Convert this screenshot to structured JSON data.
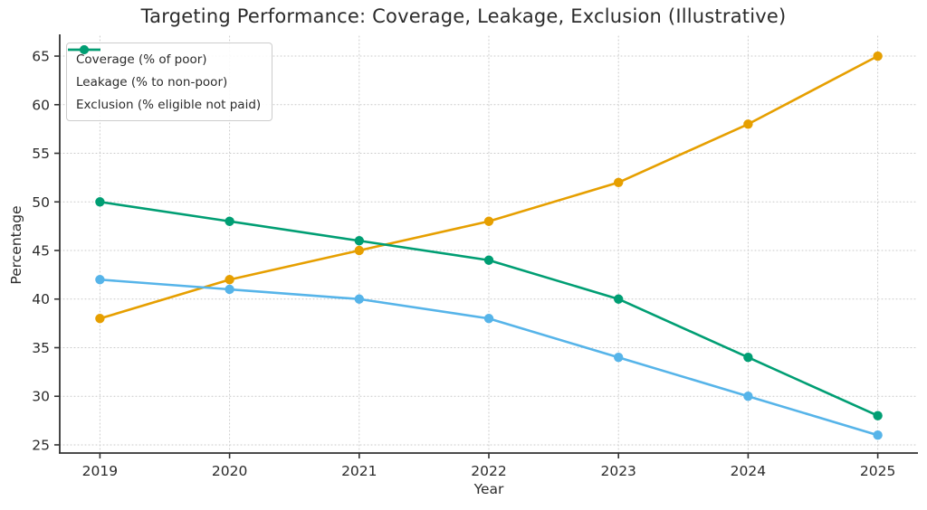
{
  "chart_data": {
    "type": "line",
    "title": "Targeting Performance: Coverage, Leakage, Exclusion (Illustrative)",
    "xlabel": "Year",
    "ylabel": "Percentage",
    "x": [
      2019,
      2020,
      2021,
      2022,
      2023,
      2024,
      2025
    ],
    "series": [
      {
        "name": "Coverage (% of poor)",
        "values": [
          38,
          42,
          45,
          48,
          52,
          58,
          65
        ],
        "color": "#E69F00"
      },
      {
        "name": "Leakage (% to non-poor)",
        "values": [
          42,
          41,
          40,
          38,
          34,
          30,
          26
        ],
        "color": "#56B4E9"
      },
      {
        "name": "Exclusion (% eligible not paid)",
        "values": [
          50,
          48,
          46,
          44,
          40,
          34,
          28
        ],
        "color": "#009E73"
      }
    ],
    "yticks": [
      25,
      30,
      35,
      40,
      45,
      50,
      55,
      60,
      65
    ],
    "ylim": [
      24.16,
      67.05
    ],
    "xlim": [
      2018.69,
      2025.31
    ],
    "grid": true,
    "legend_position": "upper-left",
    "colors": {
      "grid": "#c9c9c9",
      "spine": "#333333",
      "tick_text": "#2b2b2b",
      "background": "#ffffff",
      "legend_border": "#cccccc"
    }
  }
}
